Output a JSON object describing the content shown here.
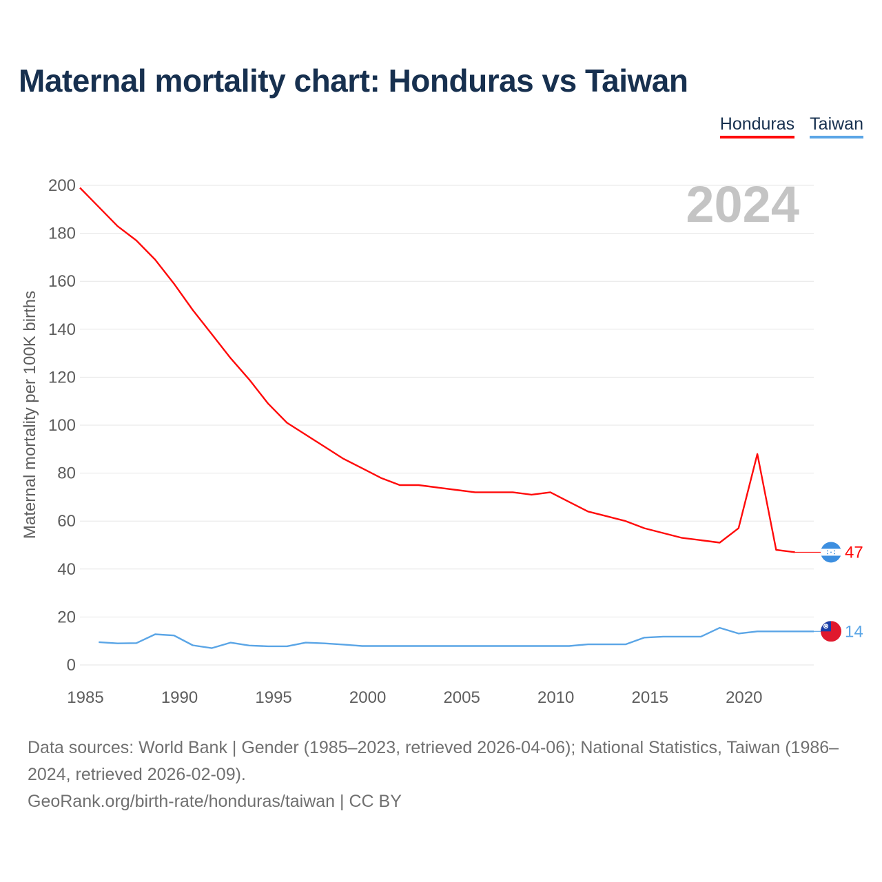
{
  "title": "Maternal mortality chart: Honduras vs Taiwan",
  "legend": [
    {
      "name": "Honduras",
      "color": "#ff0a0a"
    },
    {
      "name": "Taiwan",
      "color": "#5aa5e6"
    }
  ],
  "footer": {
    "sources": "Data sources: World Bank | Gender (1985–2023, retrieved 2026-04-06); National Statistics, Taiwan (1986–2024, retrieved 2026-02-09).",
    "link": "GeoRank.org/birth-rate/honduras/taiwan | CC BY"
  },
  "chart_data": {
    "type": "line",
    "title": "Maternal mortality chart: Honduras vs Taiwan",
    "xlabel": "",
    "ylabel": "Maternal mortality per 100K births",
    "watermark_year": "2024",
    "xlim": [
      1985,
      2024
    ],
    "ylim": [
      0,
      200
    ],
    "x_ticks": [
      1985,
      1990,
      1995,
      2000,
      2005,
      2010,
      2015,
      2020
    ],
    "y_ticks": [
      0,
      20,
      40,
      60,
      80,
      100,
      120,
      140,
      160,
      180,
      200
    ],
    "grid": true,
    "legend_position": "top-right",
    "series": [
      {
        "name": "Honduras",
        "color": "#ff0a0a",
        "end_label": "47",
        "flag": "honduras-flag-icon",
        "points": [
          [
            1985,
            199
          ],
          [
            1986,
            191
          ],
          [
            1987,
            183
          ],
          [
            1988,
            177
          ],
          [
            1989,
            169
          ],
          [
            1990,
            159
          ],
          [
            1991,
            148
          ],
          [
            1992,
            138
          ],
          [
            1993,
            128
          ],
          [
            1994,
            119
          ],
          [
            1995,
            109
          ],
          [
            1996,
            101
          ],
          [
            1997,
            96
          ],
          [
            1998,
            91
          ],
          [
            1999,
            86
          ],
          [
            2000,
            82
          ],
          [
            2001,
            78
          ],
          [
            2002,
            75
          ],
          [
            2003,
            75
          ],
          [
            2004,
            74
          ],
          [
            2005,
            73
          ],
          [
            2006,
            72
          ],
          [
            2007,
            72
          ],
          [
            2008,
            72
          ],
          [
            2009,
            71
          ],
          [
            2010,
            72
          ],
          [
            2011,
            68
          ],
          [
            2012,
            64
          ],
          [
            2013,
            62
          ],
          [
            2014,
            60
          ],
          [
            2015,
            57
          ],
          [
            2016,
            55
          ],
          [
            2017,
            53
          ],
          [
            2018,
            52
          ],
          [
            2019,
            51
          ],
          [
            2020,
            57
          ],
          [
            2021,
            88
          ],
          [
            2022,
            48
          ],
          [
            2023,
            47
          ]
        ]
      },
      {
        "name": "Taiwan",
        "color": "#5aa5e6",
        "end_label": "14",
        "flag": "taiwan-flag-icon",
        "points": [
          [
            1986,
            9.5
          ],
          [
            1987,
            9
          ],
          [
            1988,
            9.1
          ],
          [
            1989,
            12.8
          ],
          [
            1990,
            12.3
          ],
          [
            1991,
            8.2
          ],
          [
            1992,
            7
          ],
          [
            1993,
            9.3
          ],
          [
            1994,
            8.1
          ],
          [
            1995,
            7.8
          ],
          [
            1996,
            7.8
          ],
          [
            1997,
            9.3
          ],
          [
            1998,
            9
          ],
          [
            1999,
            8.5
          ],
          [
            2000,
            7.9
          ],
          [
            2001,
            7.9
          ],
          [
            2002,
            7.9
          ],
          [
            2003,
            7.9
          ],
          [
            2004,
            7.9
          ],
          [
            2005,
            7.9
          ],
          [
            2006,
            7.9
          ],
          [
            2007,
            7.9
          ],
          [
            2008,
            7.9
          ],
          [
            2009,
            7.9
          ],
          [
            2010,
            7.9
          ],
          [
            2011,
            7.9
          ],
          [
            2012,
            8.6
          ],
          [
            2013,
            8.6
          ],
          [
            2014,
            8.6
          ],
          [
            2015,
            11.4
          ],
          [
            2016,
            11.8
          ],
          [
            2017,
            11.8
          ],
          [
            2018,
            11.8
          ],
          [
            2019,
            15.5
          ],
          [
            2020,
            13.1
          ],
          [
            2021,
            14
          ],
          [
            2022,
            14
          ],
          [
            2023,
            14
          ],
          [
            2024,
            14
          ]
        ]
      }
    ]
  }
}
